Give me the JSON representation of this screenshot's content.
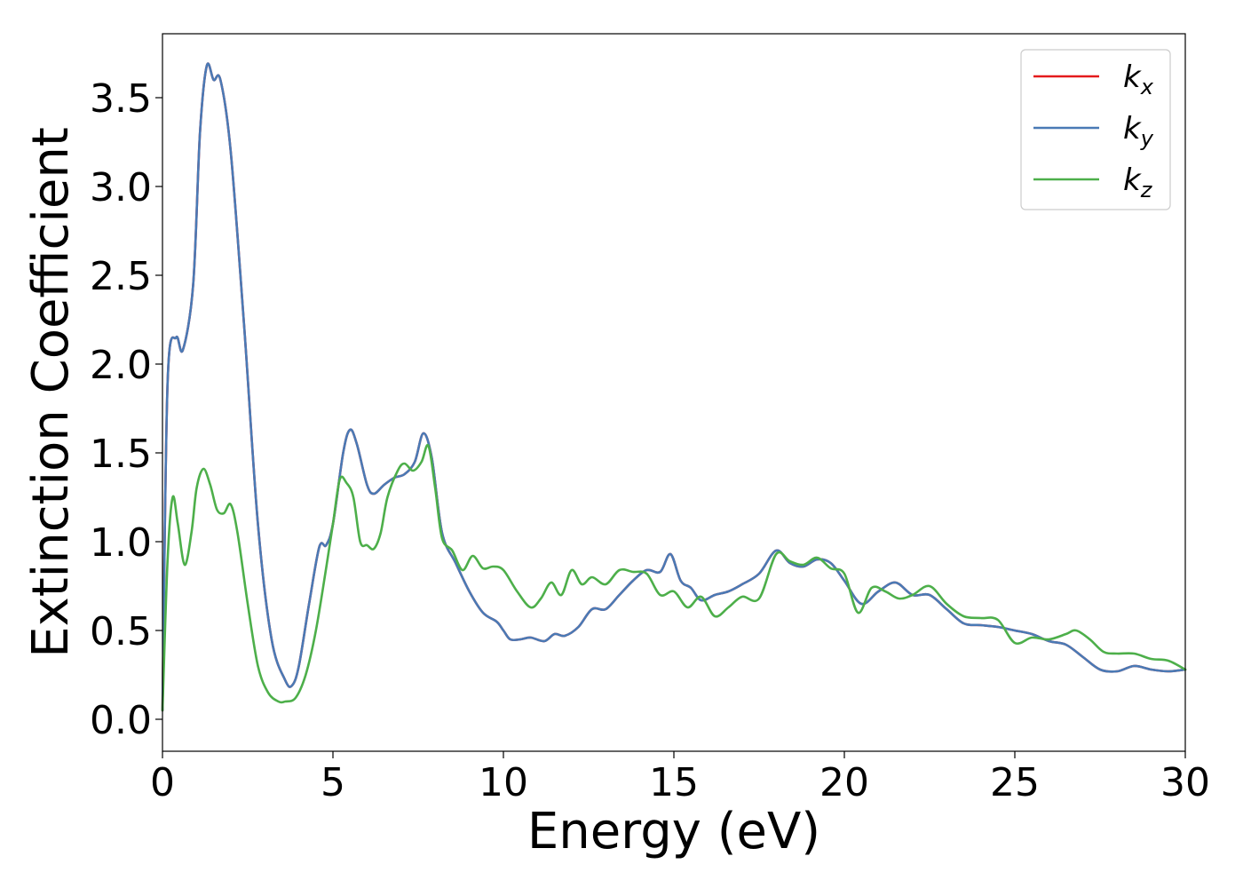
{
  "chart_data": {
    "type": "line",
    "title": "",
    "xlabel": "Energy (eV)",
    "ylabel": "Extinction Coefficient",
    "xlim": [
      0,
      30
    ],
    "ylim": [
      -0.18,
      3.86
    ],
    "xticks": [
      0,
      5,
      10,
      15,
      20,
      25,
      30
    ],
    "xtick_labels": [
      "0",
      "5",
      "10",
      "15",
      "20",
      "25",
      "30"
    ],
    "yticks": [
      0.0,
      0.5,
      1.0,
      1.5,
      2.0,
      2.5,
      3.0,
      3.5
    ],
    "ytick_labels": [
      "0.0",
      "0.5",
      "1.0",
      "1.5",
      "2.0",
      "2.5",
      "3.0",
      "3.5"
    ],
    "grid": false,
    "legend_position": "top-right",
    "series": [
      {
        "name": "k_x",
        "label_base": "k",
        "label_sub": "x",
        "color": "#e41a1c",
        "hidden_under": "k_y",
        "x": [
          0,
          0.15,
          0.4,
          0.6,
          0.9,
          1.1,
          1.3,
          1.5,
          1.7,
          2.0,
          2.4,
          2.8,
          3.2,
          3.6,
          3.8,
          4.0,
          4.3,
          4.6,
          4.8,
          5.0,
          5.3,
          5.5,
          5.7,
          6.0,
          6.2,
          6.5,
          6.8,
          7.1,
          7.4,
          7.65,
          7.9,
          8.2,
          8.6,
          9.0,
          9.4,
          9.8,
          10.0,
          10.2,
          10.5,
          10.8,
          11.2,
          11.5,
          11.8,
          12.2,
          12.6,
          13.0,
          13.4,
          13.8,
          14.2,
          14.6,
          14.9,
          15.2,
          15.5,
          15.8,
          16.2,
          16.6,
          17.0,
          17.5,
          18.0,
          18.4,
          18.8,
          19.2,
          19.6,
          20.0,
          20.5,
          21.0,
          21.5,
          22.0,
          22.5,
          23.0,
          23.5,
          24.0,
          24.5,
          25.0,
          25.5,
          26.0,
          26.5,
          27.0,
          27.5,
          28.0,
          28.5,
          29.0,
          29.5,
          30.0
        ],
        "y": [
          0.05,
          1.9,
          2.15,
          2.08,
          2.45,
          3.3,
          3.68,
          3.6,
          3.6,
          3.2,
          2.2,
          1.1,
          0.45,
          0.22,
          0.19,
          0.3,
          0.65,
          0.97,
          0.98,
          1.1,
          1.5,
          1.63,
          1.55,
          1.32,
          1.27,
          1.32,
          1.36,
          1.38,
          1.45,
          1.61,
          1.47,
          1.05,
          0.88,
          0.72,
          0.6,
          0.55,
          0.5,
          0.45,
          0.45,
          0.46,
          0.44,
          0.48,
          0.47,
          0.52,
          0.62,
          0.62,
          0.7,
          0.78,
          0.84,
          0.83,
          0.93,
          0.78,
          0.74,
          0.67,
          0.7,
          0.72,
          0.76,
          0.82,
          0.95,
          0.88,
          0.86,
          0.9,
          0.88,
          0.78,
          0.65,
          0.72,
          0.77,
          0.7,
          0.7,
          0.62,
          0.54,
          0.53,
          0.52,
          0.5,
          0.48,
          0.44,
          0.42,
          0.35,
          0.28,
          0.27,
          0.3,
          0.28,
          0.27,
          0.28
        ]
      },
      {
        "name": "k_y",
        "label_base": "k",
        "label_sub": "y",
        "color": "#4a7ab5",
        "x": [
          0,
          0.15,
          0.4,
          0.6,
          0.9,
          1.1,
          1.3,
          1.5,
          1.7,
          2.0,
          2.4,
          2.8,
          3.2,
          3.6,
          3.8,
          4.0,
          4.3,
          4.6,
          4.8,
          5.0,
          5.3,
          5.5,
          5.7,
          6.0,
          6.2,
          6.5,
          6.8,
          7.1,
          7.4,
          7.65,
          7.9,
          8.2,
          8.6,
          9.0,
          9.4,
          9.8,
          10.0,
          10.2,
          10.5,
          10.8,
          11.2,
          11.5,
          11.8,
          12.2,
          12.6,
          13.0,
          13.4,
          13.8,
          14.2,
          14.6,
          14.9,
          15.2,
          15.5,
          15.8,
          16.2,
          16.6,
          17.0,
          17.5,
          18.0,
          18.4,
          18.8,
          19.2,
          19.6,
          20.0,
          20.5,
          21.0,
          21.5,
          22.0,
          22.5,
          23.0,
          23.5,
          24.0,
          24.5,
          25.0,
          25.5,
          26.0,
          26.5,
          27.0,
          27.5,
          28.0,
          28.5,
          29.0,
          29.5,
          30.0
        ],
        "y": [
          0.05,
          1.9,
          2.15,
          2.08,
          2.45,
          3.3,
          3.68,
          3.6,
          3.6,
          3.2,
          2.2,
          1.1,
          0.45,
          0.22,
          0.19,
          0.3,
          0.65,
          0.97,
          0.98,
          1.1,
          1.5,
          1.63,
          1.55,
          1.32,
          1.27,
          1.32,
          1.36,
          1.38,
          1.45,
          1.61,
          1.47,
          1.05,
          0.88,
          0.72,
          0.6,
          0.55,
          0.5,
          0.45,
          0.45,
          0.46,
          0.44,
          0.48,
          0.47,
          0.52,
          0.62,
          0.62,
          0.7,
          0.78,
          0.84,
          0.83,
          0.93,
          0.78,
          0.74,
          0.67,
          0.7,
          0.72,
          0.76,
          0.82,
          0.95,
          0.88,
          0.86,
          0.9,
          0.88,
          0.78,
          0.65,
          0.72,
          0.77,
          0.7,
          0.7,
          0.62,
          0.54,
          0.53,
          0.52,
          0.5,
          0.48,
          0.44,
          0.42,
          0.35,
          0.28,
          0.27,
          0.3,
          0.28,
          0.27,
          0.28
        ]
      },
      {
        "name": "k_z",
        "label_base": "k",
        "label_sub": "z",
        "color": "#4daf4a",
        "x": [
          0,
          0.15,
          0.3,
          0.45,
          0.65,
          0.85,
          1.0,
          1.2,
          1.4,
          1.6,
          1.8,
          2.0,
          2.2,
          2.5,
          2.8,
          3.1,
          3.4,
          3.6,
          3.9,
          4.2,
          4.5,
          4.8,
          5.0,
          5.2,
          5.4,
          5.6,
          5.8,
          6.0,
          6.2,
          6.4,
          6.6,
          6.9,
          7.1,
          7.35,
          7.6,
          7.8,
          8.0,
          8.2,
          8.5,
          8.8,
          9.1,
          9.4,
          9.7,
          10.0,
          10.4,
          10.8,
          11.1,
          11.4,
          11.7,
          12.0,
          12.3,
          12.6,
          13.0,
          13.4,
          13.8,
          14.2,
          14.6,
          15.0,
          15.4,
          15.8,
          16.2,
          16.6,
          17.0,
          17.5,
          18.0,
          18.4,
          18.8,
          19.2,
          19.6,
          20.0,
          20.4,
          20.8,
          21.2,
          21.6,
          22.0,
          22.5,
          23.0,
          23.5,
          24.0,
          24.5,
          25.0,
          25.5,
          26.0,
          26.5,
          26.8,
          27.2,
          27.6,
          28.0,
          28.5,
          29.0,
          29.5,
          30.0
        ],
        "y": [
          0.05,
          0.9,
          1.25,
          1.1,
          0.87,
          1.05,
          1.3,
          1.41,
          1.32,
          1.18,
          1.16,
          1.21,
          1.05,
          0.65,
          0.3,
          0.15,
          0.1,
          0.1,
          0.12,
          0.25,
          0.5,
          0.85,
          1.1,
          1.35,
          1.33,
          1.25,
          1.0,
          0.98,
          0.96,
          1.05,
          1.25,
          1.4,
          1.44,
          1.4,
          1.45,
          1.54,
          1.3,
          1.02,
          0.95,
          0.84,
          0.92,
          0.85,
          0.86,
          0.84,
          0.72,
          0.63,
          0.68,
          0.77,
          0.7,
          0.84,
          0.76,
          0.8,
          0.76,
          0.84,
          0.83,
          0.82,
          0.7,
          0.72,
          0.63,
          0.69,
          0.58,
          0.63,
          0.69,
          0.68,
          0.93,
          0.89,
          0.87,
          0.91,
          0.85,
          0.82,
          0.6,
          0.74,
          0.72,
          0.68,
          0.7,
          0.75,
          0.65,
          0.58,
          0.57,
          0.56,
          0.43,
          0.46,
          0.45,
          0.48,
          0.5,
          0.45,
          0.38,
          0.37,
          0.37,
          0.34,
          0.33,
          0.28
        ]
      }
    ]
  }
}
